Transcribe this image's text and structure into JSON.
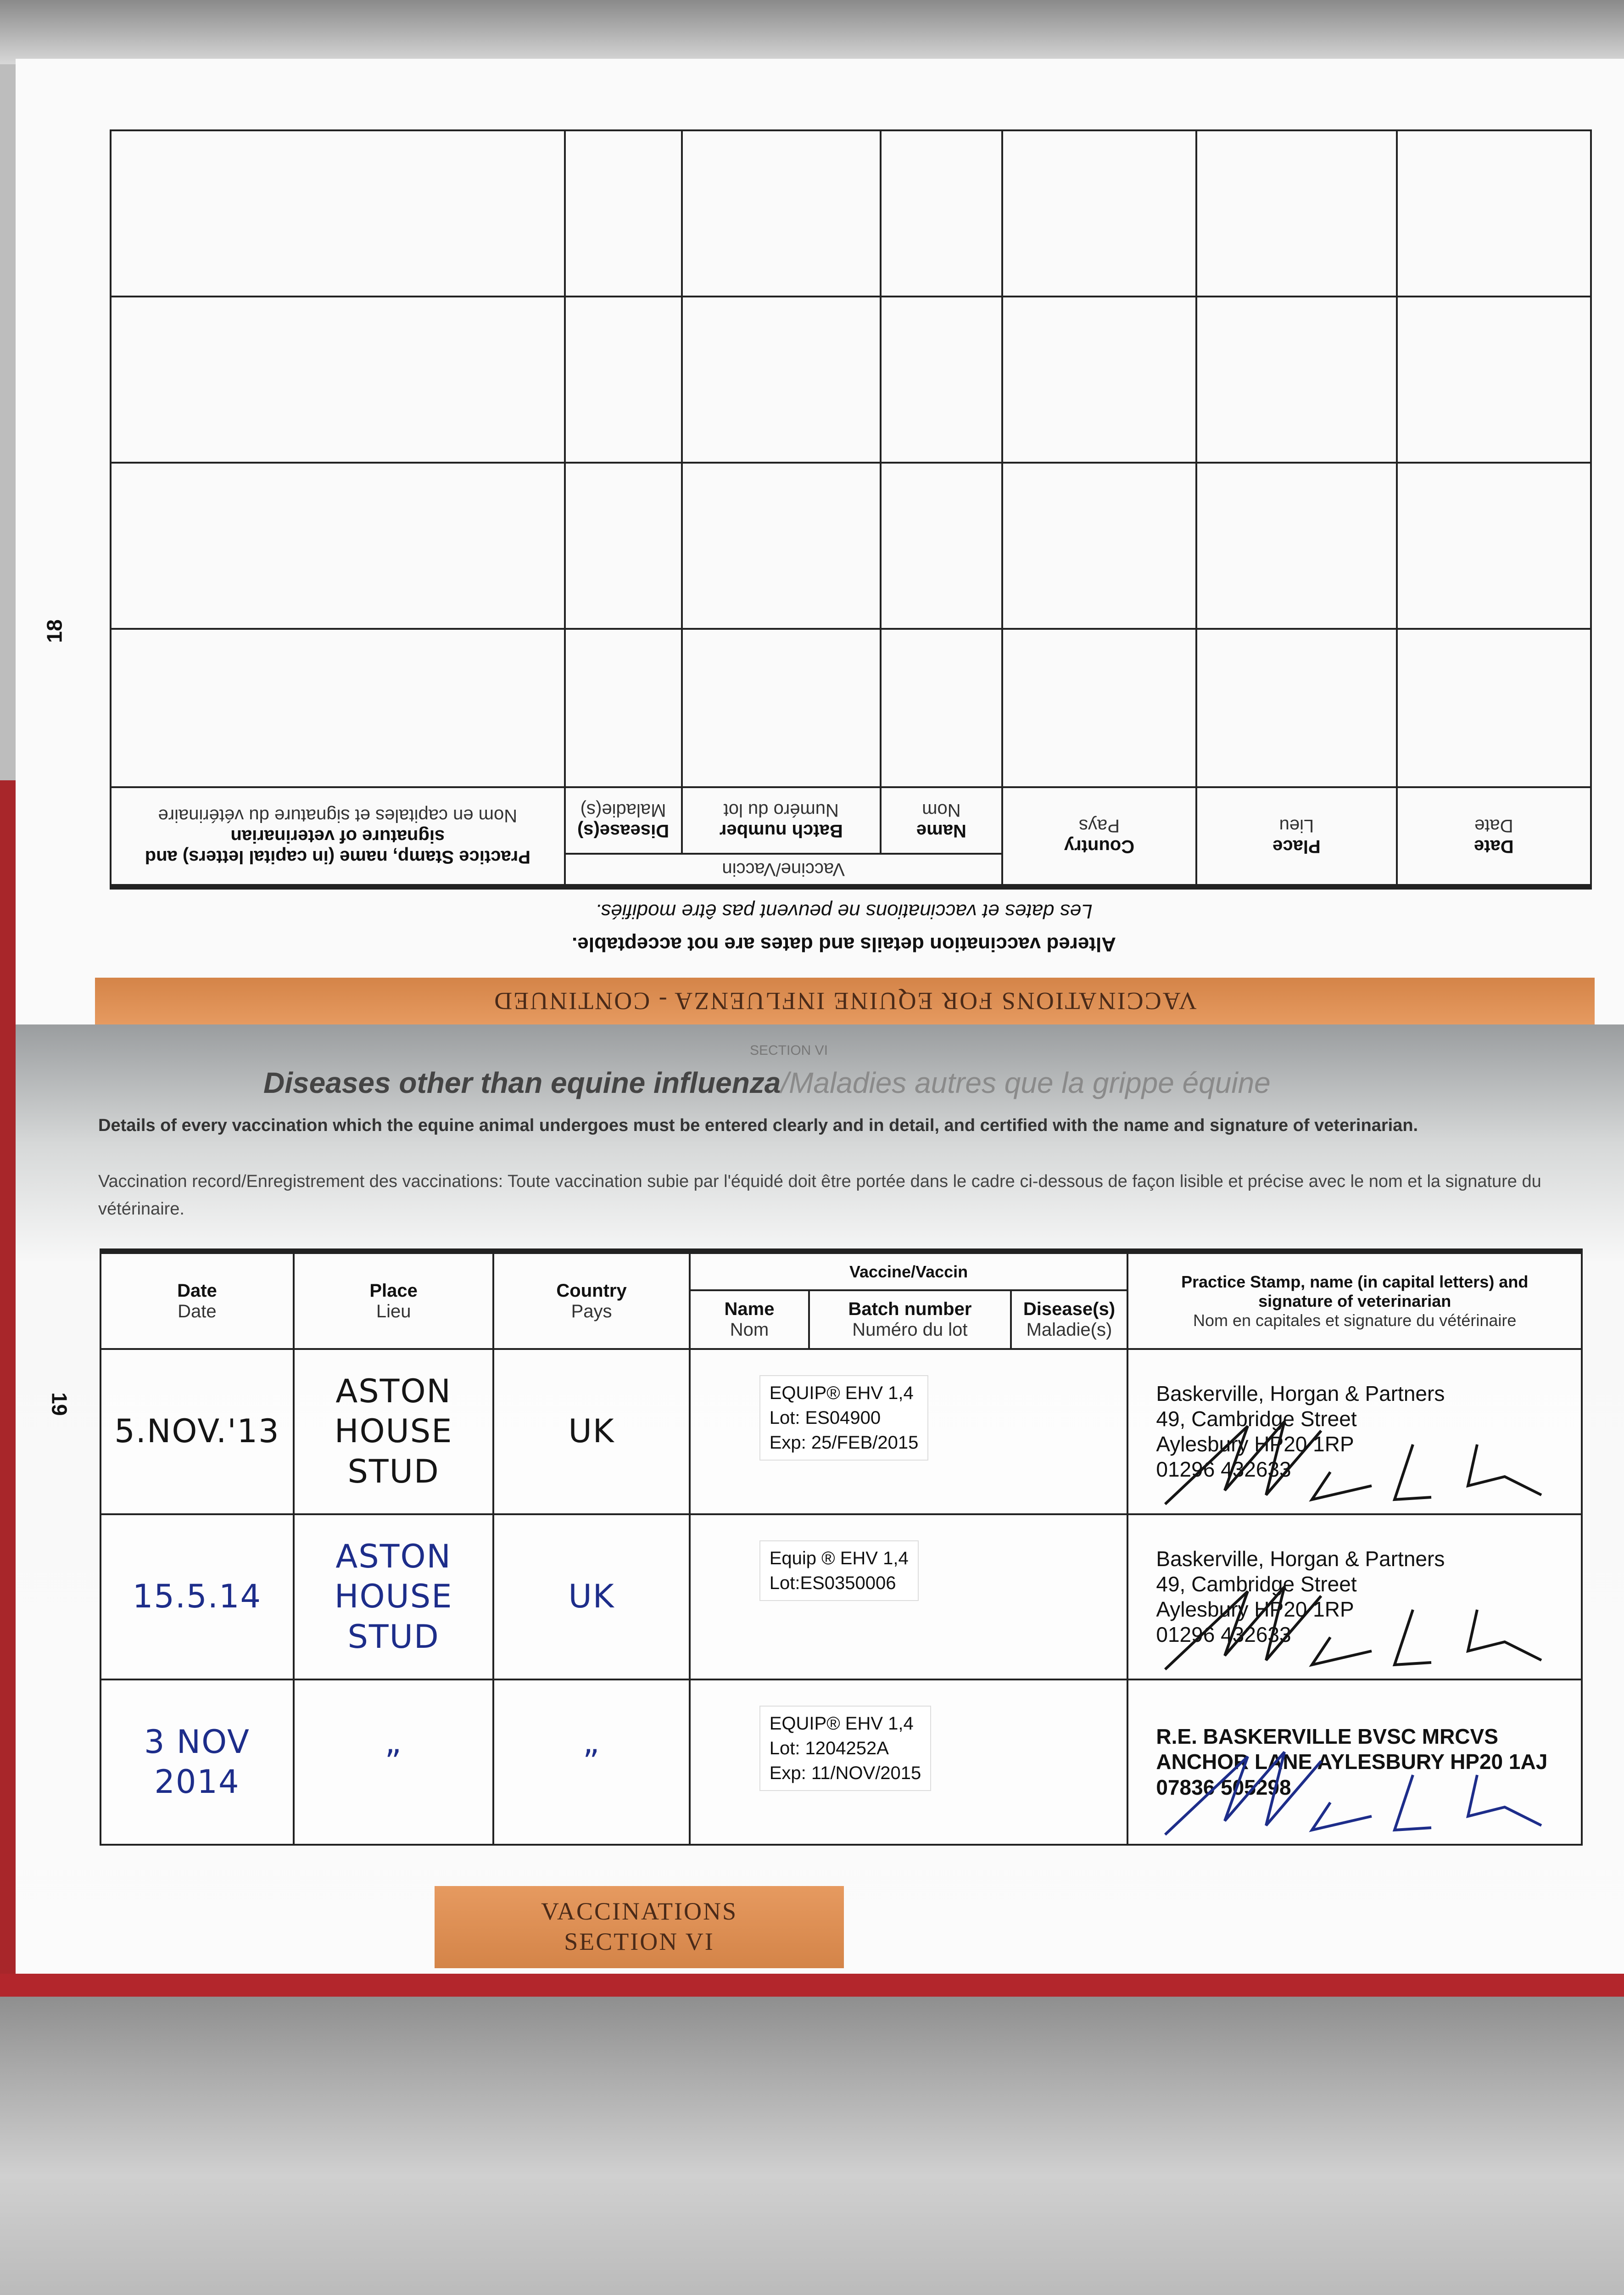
{
  "page18": {
    "page_number": "18",
    "banner": "VACCINATIONS FOR EQUINE INFLUENZA - CONTINUED",
    "warning_en": "Altered vaccination details and dates are not acceptable.",
    "warning_fr": "Les dates et vaccinations ne peuvent pas être modifiés.",
    "headers": {
      "date": {
        "en": "Date",
        "fr": "Date"
      },
      "place": {
        "en": "Place",
        "fr": "Lieu"
      },
      "country": {
        "en": "Country",
        "fr": "Pays"
      },
      "vaccine": "Vaccine/Vaccin",
      "name": {
        "en": "Name",
        "fr": "Nom"
      },
      "batch": {
        "en": "Batch number",
        "fr": "Numéro du lot"
      },
      "disease": {
        "en": "Disease(s)",
        "fr": "Maladie(s)"
      },
      "practice": {
        "en": "Practice Stamp, name (in capital letters) and signature of veterinarian",
        "fr": "Nom en capitales et signature du vétérinaire"
      }
    }
  },
  "page19": {
    "page_number": "19",
    "section": "SECTION VI",
    "title_en": "Diseases other than equine influenza",
    "title_fr": "/Maladies autres que la grippe équine",
    "intro_en": "Details of every vaccination which the equine animal undergoes must be entered clearly and in detail, and certified with the name and signature of veterinarian.",
    "intro_fr": "Vaccination record/Enregistrement des vaccinations: Toute vaccination subie par l'équidé doit être portée dans le cadre ci-dessous de façon lisible et précise avec le nom et la signature du vétérinaire.",
    "headers": {
      "date": {
        "en": "Date",
        "fr": "Date"
      },
      "place": {
        "en": "Place",
        "fr": "Lieu"
      },
      "country": {
        "en": "Country",
        "fr": "Pays"
      },
      "vaccine": "Vaccine/Vaccin",
      "name": {
        "en": "Name",
        "fr": "Nom"
      },
      "batch": {
        "en": "Batch number",
        "fr": "Numéro du lot"
      },
      "disease": {
        "en": "Disease(s)",
        "fr": "Maladie(s)"
      },
      "practice": {
        "en": "Practice Stamp, name (in capital letters) and signature of veterinarian",
        "fr": "Nom en capitales et signature du vétérinaire"
      }
    },
    "rows": [
      {
        "date": "5.NOV.'13",
        "place": "ASTON HOUSE STUD",
        "country": "UK",
        "ink": "#151515",
        "label": {
          "l1": "EQUIP® EHV 1,4",
          "l2": "Lot:   ES04900",
          "l3": "Exp:   25/FEB/2015"
        },
        "stamp": {
          "l1": "Baskerville, Horgan & Partners",
          "l2": "49, Cambridge Street",
          "l3": "Aylesbury HP20 1RP",
          "l4": "01296 432633"
        }
      },
      {
        "date": "15.5.14",
        "place": "ASTON HOUSE STUD",
        "country": "UK",
        "ink": "#1d2d8a",
        "label": {
          "l1": "Equip ® EHV 1,4",
          "l2": "Lot:ES0350006",
          "l3": ""
        },
        "stamp": {
          "l1": "Baskerville, Horgan & Partners",
          "l2": "49, Cambridge Street",
          "l3": "Aylesbury HP20 1RP",
          "l4": "01296 432633"
        }
      },
      {
        "date": "3 NOV 2014",
        "place": "”",
        "country": "”",
        "ink": "#1d2d8a",
        "label": {
          "l1": "EQUIP® EHV 1,4",
          "l2": "Lot:   1204252A",
          "l3": "Exp:   11/NOV/2015"
        },
        "stamp": {
          "l1": "R.E. BASKERVILLE BVSC MRCVS",
          "l2": "ANCHOR LANE AYLESBURY HP20 1AJ",
          "l3": "07836 505298",
          "l4": ""
        }
      }
    ],
    "footer_label": {
      "l1": "VACCINATIONS",
      "l2": "SECTION VI"
    }
  },
  "colors": {
    "banner": "#dc8c50",
    "book_cover": "#b3262c",
    "ink_blue": "#1d2d8a"
  }
}
